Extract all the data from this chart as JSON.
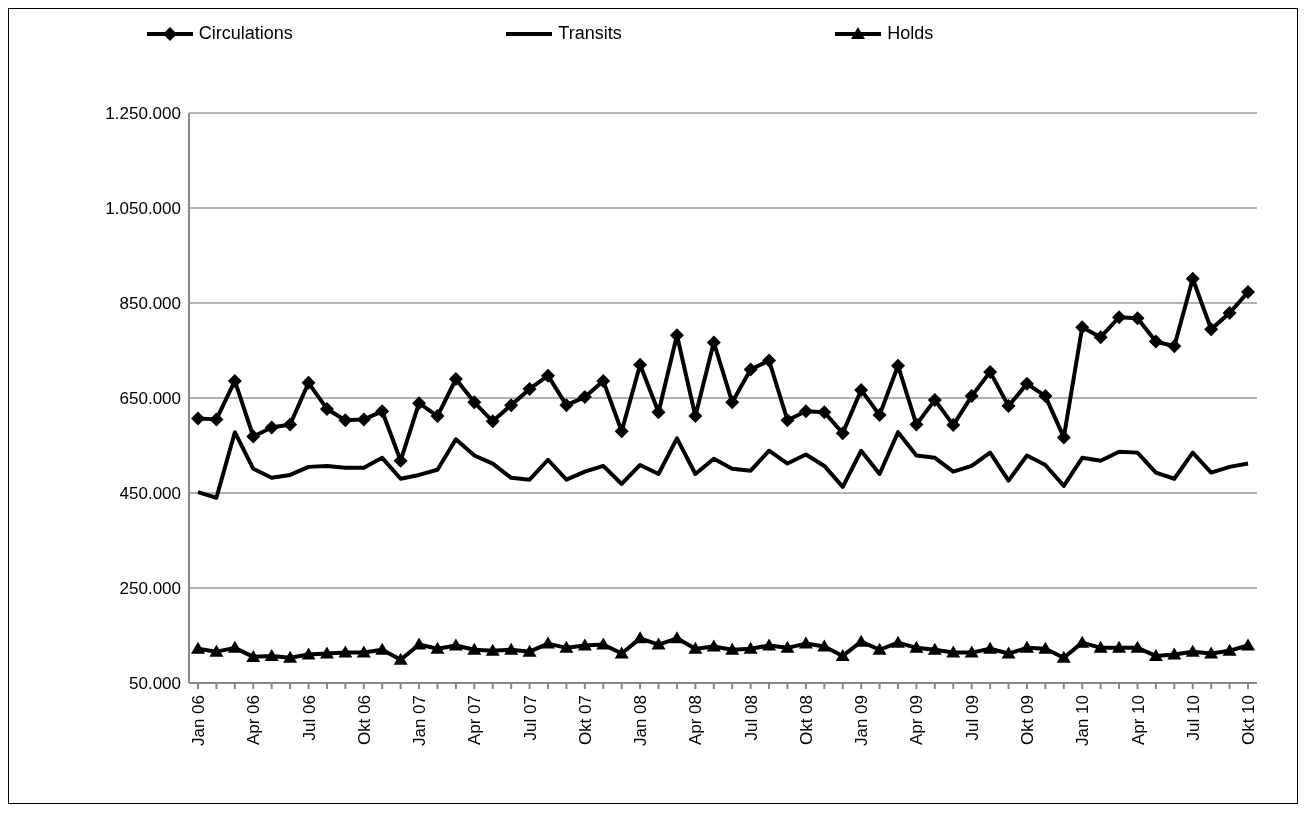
{
  "chart_data": {
    "type": "line",
    "categories": [
      "Jan 06",
      null,
      null,
      "Apr 06",
      null,
      null,
      "Jul 06",
      null,
      null,
      "Okt 06",
      null,
      null,
      "Jan 07",
      null,
      null,
      "Apr 07",
      null,
      null,
      "Jul 07",
      null,
      null,
      "Okt 07",
      null,
      null,
      "Jan 08",
      null,
      null,
      "Apr 08",
      null,
      null,
      "Jul 08",
      null,
      null,
      "Okt 08",
      null,
      null,
      "Jan 09",
      null,
      null,
      "Apr 09",
      null,
      null,
      "Jul 09",
      null,
      null,
      "Okt 09",
      null,
      null,
      "Jan 10",
      null,
      null,
      "Apr 10",
      null,
      null,
      "Jul 10",
      null,
      null,
      "Okt 10"
    ],
    "series": [
      {
        "name": "Circulations",
        "color": "#000000",
        "marker": "diamond",
        "values": [
          607000,
          605000,
          686000,
          569000,
          588000,
          594000,
          682000,
          627000,
          603000,
          605000,
          622000,
          518000,
          639000,
          612000,
          690000,
          641000,
          601000,
          635000,
          669000,
          697000,
          635000,
          652000,
          686000,
          580000,
          720000,
          620000,
          782000,
          612000,
          767000,
          641000,
          710000,
          729000,
          603000,
          622000,
          620000,
          576000,
          667000,
          614000,
          718000,
          594000,
          646000,
          593000,
          654000,
          705000,
          633000,
          680000,
          654000,
          567000,
          799000,
          778000,
          820000,
          818000,
          769000,
          759000,
          901000,
          795000,
          829000,
          873000
        ]
      },
      {
        "name": "Transits",
        "color": "#000000",
        "marker": "none",
        "values": [
          452000,
          440000,
          578000,
          501000,
          482000,
          488000,
          505000,
          507000,
          503000,
          503000,
          524000,
          480000,
          488000,
          499000,
          563000,
          529000,
          512000,
          482000,
          478000,
          520000,
          478000,
          495000,
          507000,
          469000,
          509000,
          490000,
          565000,
          490000,
          522000,
          501000,
          497000,
          539000,
          512000,
          531000,
          507000,
          463000,
          539000,
          490000,
          578000,
          529000,
          524000,
          495000,
          507000,
          535000,
          476000,
          529000,
          509000,
          465000,
          524000,
          518000,
          537000,
          535000,
          493000,
          480000,
          535000,
          493000,
          505000,
          512000
        ]
      },
      {
        "name": "Holds",
        "color": "#000000",
        "marker": "triangle",
        "values": [
          122000,
          116000,
          124000,
          105000,
          107000,
          103000,
          110000,
          112000,
          114000,
          114000,
          120000,
          99000,
          131000,
          122000,
          129000,
          120000,
          118000,
          120000,
          116000,
          133000,
          124000,
          129000,
          131000,
          112000,
          144000,
          131000,
          144000,
          122000,
          127000,
          120000,
          122000,
          129000,
          124000,
          133000,
          127000,
          107000,
          137000,
          120000,
          135000,
          124000,
          120000,
          114000,
          114000,
          122000,
          112000,
          124000,
          122000,
          103000,
          135000,
          124000,
          124000,
          124000,
          107000,
          110000,
          116000,
          112000,
          118000,
          129000
        ]
      }
    ],
    "ylim": [
      50000,
      1250000
    ],
    "yticks": [
      {
        "value": 50000,
        "label": "50.000"
      },
      {
        "value": 250000,
        "label": "250.000"
      },
      {
        "value": 450000,
        "label": "450.000"
      },
      {
        "value": 650000,
        "label": "650.000"
      },
      {
        "value": 850000,
        "label": "850.000"
      },
      {
        "value": 1050000,
        "label": "1.050.000"
      },
      {
        "value": 1250000,
        "label": "1.250.000"
      }
    ],
    "grid": "y",
    "legend": "top",
    "line_style": "solid"
  }
}
